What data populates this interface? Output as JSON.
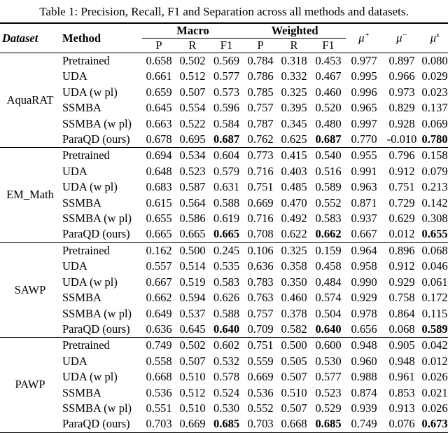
{
  "title": "Table 1: Precision, Recall, F1 and Separation across all methods and datasets.",
  "table": {
    "columns": {
      "dataset": "Dataset",
      "method": "Method",
      "macro": "Macro",
      "weighted": "Weighted",
      "metrics": [
        "P",
        "R",
        "F1",
        "P",
        "R",
        "F1"
      ],
      "mu": [
        {
          "base": "μ",
          "sup": "+"
        },
        {
          "base": "μ",
          "sup": "−"
        },
        {
          "base": "μ",
          "sup": "s"
        }
      ]
    },
    "groups": [
      {
        "dataset": "AquaRAT",
        "rows": [
          {
            "method": "Pretrained",
            "values": [
              "0.658",
              "0.502",
              "0.569",
              "0.784",
              "0.318",
              "0.453",
              "0.977",
              "0.897",
              "0.080"
            ],
            "bold": []
          },
          {
            "method": "UDA",
            "values": [
              "0.661",
              "0.512",
              "0.577",
              "0.786",
              "0.332",
              "0.467",
              "0.995",
              "0.966",
              "0.029"
            ],
            "bold": []
          },
          {
            "method": "UDA (w pl)",
            "values": [
              "0.659",
              "0.507",
              "0.573",
              "0.785",
              "0.325",
              "0.460",
              "0.996",
              "0.973",
              "0.023"
            ],
            "bold": []
          },
          {
            "method": "SSMBA",
            "values": [
              "0.645",
              "0.554",
              "0.596",
              "0.757",
              "0.395",
              "0.520",
              "0.965",
              "0.829",
              "0.137"
            ],
            "bold": []
          },
          {
            "method": "SSMBA (w pl)",
            "values": [
              "0.663",
              "0.522",
              "0.584",
              "0.787",
              "0.345",
              "0.480",
              "0.997",
              "0.928",
              "0.069"
            ],
            "bold": []
          },
          {
            "method": "ParaQD (ours)",
            "values": [
              "0.678",
              "0.695",
              "0.687",
              "0.762",
              "0.625",
              "0.687",
              "0.770",
              "-0.010",
              "0.780"
            ],
            "bold": [
              2,
              5,
              8
            ]
          }
        ]
      },
      {
        "dataset": "EM_Math",
        "rows": [
          {
            "method": "Pretrained",
            "values": [
              "0.694",
              "0.534",
              "0.604",
              "0.773",
              "0.415",
              "0.540",
              "0.955",
              "0.796",
              "0.158"
            ],
            "bold": []
          },
          {
            "method": "UDA",
            "values": [
              "0.648",
              "0.523",
              "0.579",
              "0.716",
              "0.403",
              "0.516",
              "0.991",
              "0.912",
              "0.079"
            ],
            "bold": []
          },
          {
            "method": "UDA (w pl)",
            "values": [
              "0.683",
              "0.587",
              "0.631",
              "0.751",
              "0.485",
              "0.589",
              "0.963",
              "0.751",
              "0.213"
            ],
            "bold": []
          },
          {
            "method": "SSMBA",
            "values": [
              "0.615",
              "0.564",
              "0.588",
              "0.669",
              "0.470",
              "0.552",
              "0.871",
              "0.729",
              "0.142"
            ],
            "bold": []
          },
          {
            "method": "SSMBA (w pl)",
            "values": [
              "0.655",
              "0.586",
              "0.619",
              "0.716",
              "0.492",
              "0.583",
              "0.937",
              "0.629",
              "0.308"
            ],
            "bold": []
          },
          {
            "method": "ParaQD (ours)",
            "values": [
              "0.665",
              "0.665",
              "0.665",
              "0.708",
              "0.622",
              "0.662",
              "0.667",
              "0.012",
              "0.655"
            ],
            "bold": [
              2,
              5,
              8
            ]
          }
        ]
      },
      {
        "dataset": "SAWP",
        "rows": [
          {
            "method": "Pretrained",
            "values": [
              "0.162",
              "0.500",
              "0.245",
              "0.106",
              "0.325",
              "0.159",
              "0.964",
              "0.896",
              "0.068"
            ],
            "bold": []
          },
          {
            "method": "UDA",
            "values": [
              "0.557",
              "0.514",
              "0.535",
              "0.636",
              "0.358",
              "0.458",
              "0.958",
              "0.912",
              "0.046"
            ],
            "bold": []
          },
          {
            "method": "UDA (w pl)",
            "values": [
              "0.667",
              "0.519",
              "0.583",
              "0.783",
              "0.350",
              "0.484",
              "0.990",
              "0.929",
              "0.061"
            ],
            "bold": []
          },
          {
            "method": "SSMBA",
            "values": [
              "0.662",
              "0.594",
              "0.626",
              "0.763",
              "0.460",
              "0.574",
              "0.929",
              "0.758",
              "0.172"
            ],
            "bold": []
          },
          {
            "method": "SSMBA (w pl)",
            "values": [
              "0.649",
              "0.537",
              "0.588",
              "0.757",
              "0.378",
              "0.504",
              "0.978",
              "0.864",
              "0.115"
            ],
            "bold": []
          },
          {
            "method": "ParaQD (ours)",
            "values": [
              "0.636",
              "0.645",
              "0.640",
              "0.709",
              "0.582",
              "0.640",
              "0.656",
              "0.068",
              "0.589"
            ],
            "bold": [
              2,
              5,
              8
            ]
          }
        ]
      },
      {
        "dataset": "PAWP",
        "rows": [
          {
            "method": "Pretrained",
            "values": [
              "0.749",
              "0.502",
              "0.602",
              "0.751",
              "0.500",
              "0.600",
              "0.948",
              "0.905",
              "0.042"
            ],
            "bold": []
          },
          {
            "method": "UDA",
            "values": [
              "0.558",
              "0.507",
              "0.532",
              "0.559",
              "0.505",
              "0.530",
              "0.960",
              "0.948",
              "0.012"
            ],
            "bold": []
          },
          {
            "method": "UDA (w pl)",
            "values": [
              "0.668",
              "0.510",
              "0.578",
              "0.669",
              "0.507",
              "0.577",
              "0.988",
              "0.961",
              "0.026"
            ],
            "bold": []
          },
          {
            "method": "SSMBA",
            "values": [
              "0.536",
              "0.512",
              "0.524",
              "0.536",
              "0.510",
              "0.523",
              "0.874",
              "0.853",
              "0.021"
            ],
            "bold": []
          },
          {
            "method": "SSMBA (w pl)",
            "values": [
              "0.551",
              "0.510",
              "0.530",
              "0.552",
              "0.507",
              "0.529",
              "0.939",
              "0.913",
              "0.026"
            ],
            "bold": []
          },
          {
            "method": "ParaQD (ours)",
            "values": [
              "0.703",
              "0.669",
              "0.685",
              "0.703",
              "0.668",
              "0.685",
              "0.749",
              "0.076",
              "0.673"
            ],
            "bold": [
              2,
              5,
              8
            ]
          }
        ]
      }
    ]
  }
}
